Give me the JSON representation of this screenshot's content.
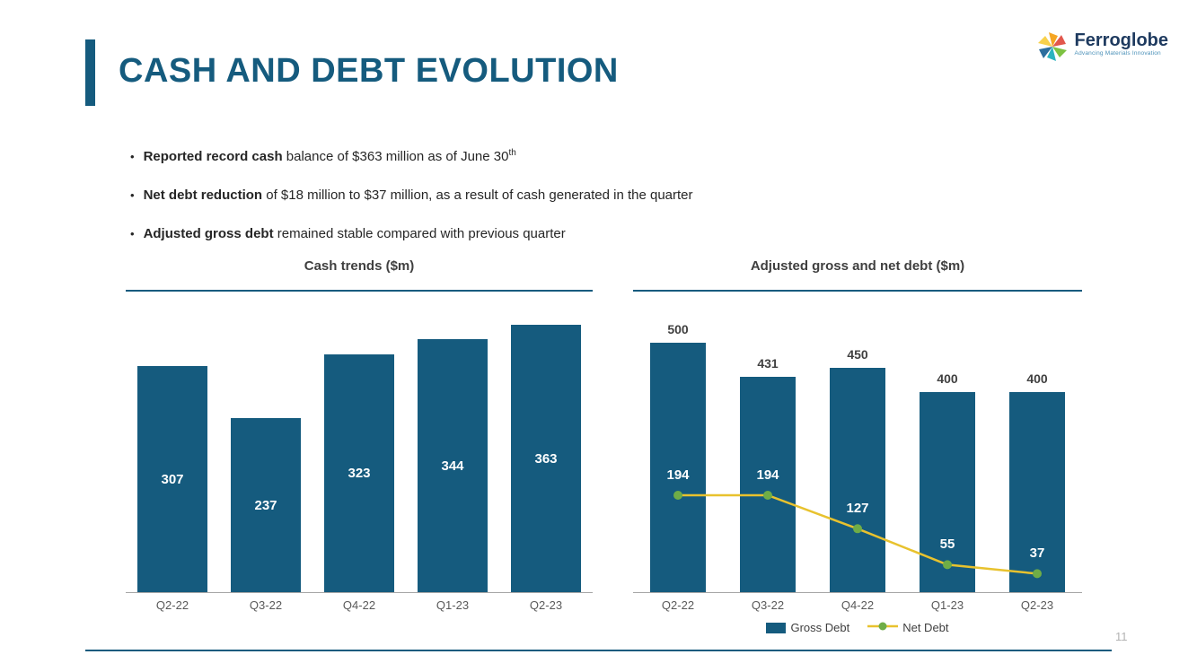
{
  "slide": {
    "title": "CASH AND DEBT EVOLUTION",
    "page_number": "11"
  },
  "logo": {
    "name": "Ferroglobe",
    "tagline": "Advancing Materials Innovation"
  },
  "bullets": [
    {
      "bold": "Reported record cash",
      "rest": " balance of $363 million as of June 30",
      "sup": "th"
    },
    {
      "bold": "Net debt reduction",
      "rest": " of $18 million to $37 million, as a result of cash generated in the quarter"
    },
    {
      "bold": "Adjusted gross debt",
      "rest": " remained stable compared with previous quarter"
    }
  ],
  "colors": {
    "brand_blue": "#155B7E",
    "bar_blue": "#155B7E",
    "line_yellow": "#E8C22E",
    "marker_green": "#6FAD47",
    "label_white": "#FFFFFF",
    "text_dark": "#3F3F3F",
    "axis_gray": "#A6A6A6",
    "page_number_gray": "#B3B3B3"
  },
  "chart_data": [
    {
      "type": "bar",
      "title": "Cash trends ($m)",
      "categories": [
        "Q2-22",
        "Q3-22",
        "Q4-22",
        "Q1-23",
        "Q2-23"
      ],
      "values": [
        307,
        237,
        323,
        344,
        363
      ],
      "ylim": [
        0,
        390
      ],
      "grid": false,
      "value_labels": "inside-white"
    },
    {
      "type": "bar+line",
      "title": "Adjusted gross and net debt ($m)",
      "categories": [
        "Q2-22",
        "Q3-22",
        "Q4-22",
        "Q1-23",
        "Q2-23"
      ],
      "series": [
        {
          "name": "Gross Debt",
          "type": "bar",
          "values": [
            500,
            431,
            450,
            400,
            400
          ]
        },
        {
          "name": "Net Debt",
          "type": "line",
          "values": [
            194,
            194,
            127,
            55,
            37
          ]
        }
      ],
      "ylim": [
        0,
        575
      ],
      "grid": false,
      "legend_position": "bottom",
      "value_labels": "bars-above, line-white"
    }
  ]
}
